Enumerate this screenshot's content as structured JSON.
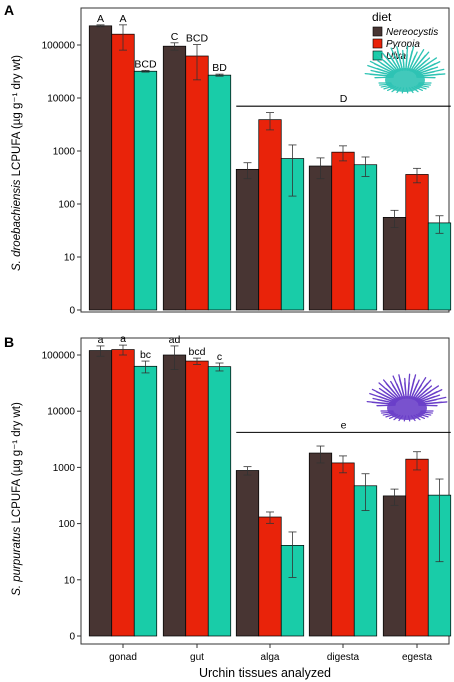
{
  "chart_data": [
    {
      "type": "bar",
      "panel_label": "A",
      "ylabel_italic": "S. droebachiensis",
      "ylabel_rest": "LCPUFA (µg g⁻¹ dry wt)",
      "y_scale": "log",
      "y_ticks": [
        "0",
        "10",
        "100",
        "1000",
        "10000",
        "100000"
      ],
      "categories": [
        "gonad",
        "gut",
        "alga",
        "digesta",
        "egesta"
      ],
      "series": [
        {
          "name": "Nereocystis",
          "color": "#483533",
          "values": [
            230000,
            95000,
            450,
            520,
            55
          ],
          "errors": [
            10000,
            15000,
            150,
            220,
            20
          ]
        },
        {
          "name": "Pyropia",
          "color": "#e9230a",
          "values": [
            160000,
            62000,
            3900,
            950,
            360
          ],
          "errors": [
            80000,
            40000,
            1400,
            300,
            110
          ]
        },
        {
          "name": "Ulva",
          "color": "#19cca8",
          "values": [
            32000,
            27000,
            720,
            550,
            43
          ],
          "errors": [
            1200,
            1200,
            580,
            220,
            16
          ]
        }
      ],
      "letters": [
        {
          "category": "gonad",
          "series": "Nereocystis",
          "text": "A"
        },
        {
          "category": "gonad",
          "series": "Pyropia",
          "text": "A"
        },
        {
          "category": "gonad",
          "series": "Ulva",
          "text": "BCD"
        },
        {
          "category": "gut",
          "series": "Nereocystis",
          "text": "C"
        },
        {
          "category": "gut",
          "series": "Pyropia",
          "text": "BCD"
        },
        {
          "category": "gut",
          "series": "Ulva",
          "text": "BD"
        }
      ],
      "group_line": {
        "from": "alga",
        "to": "egesta",
        "y": 7000,
        "text": "D"
      },
      "urchin_color": "#2ec3b4"
    },
    {
      "type": "bar",
      "panel_label": "B",
      "ylabel_italic": "S. purpuratus",
      "ylabel_rest": "LCPUFA (µg g⁻¹ dry wt)",
      "y_scale": "log",
      "y_ticks": [
        "0",
        "10",
        "100",
        "1000",
        "10000",
        "100000"
      ],
      "categories": [
        "gonad",
        "gut",
        "alga",
        "digesta",
        "egesta"
      ],
      "series": [
        {
          "name": "Nereocystis",
          "color": "#483533",
          "values": [
            120000,
            100000,
            880,
            1800,
            310
          ],
          "errors": [
            25000,
            45000,
            150,
            600,
            100
          ]
        },
        {
          "name": "Pyropia",
          "color": "#e9230a",
          "values": [
            125000,
            78000,
            130,
            1200,
            1400
          ],
          "errors": [
            25000,
            10000,
            30,
            400,
            500
          ]
        },
        {
          "name": "Ulva",
          "color": "#19cca8",
          "values": [
            63000,
            62000,
            40,
            470,
            320
          ],
          "errors": [
            15000,
            10000,
            30,
            300,
            300
          ]
        }
      ],
      "letters": [
        {
          "category": "gonad",
          "series": "Nereocystis",
          "text": "a"
        },
        {
          "category": "gonad",
          "series": "Pyropia",
          "text": "a"
        },
        {
          "category": "gonad",
          "series": "Ulva",
          "text": "bc"
        },
        {
          "category": "gut",
          "series": "Nereocystis",
          "text": "ad"
        },
        {
          "category": "gut",
          "series": "Pyropia",
          "text": "bcd"
        },
        {
          "category": "gut",
          "series": "Ulva",
          "text": "c"
        }
      ],
      "group_line": {
        "from": "alga",
        "to": "egesta",
        "y": 4200,
        "text": "e"
      },
      "urchin_color": "#6a3fc9"
    }
  ],
  "legend": {
    "title": "diet",
    "entries": [
      "Nereocystis",
      "Pyropia",
      "Ulva"
    ],
    "placement": "top-right of panel A"
  },
  "xlabel": "Urchin tissues analyzed"
}
